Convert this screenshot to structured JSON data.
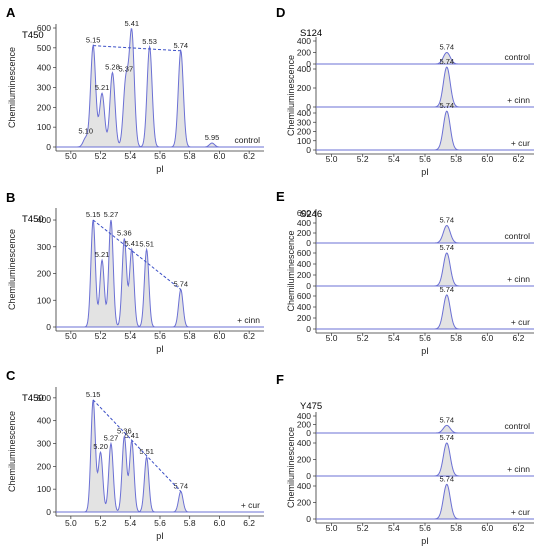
{
  "chart_data": [
    {
      "type": "line",
      "panel": "A",
      "sample": "T450",
      "xlabel": "pI",
      "ylabel": "Chemiluminescence",
      "xlim": [
        4.9,
        6.3
      ],
      "xticks": [
        "5.0",
        "5.2",
        "5.4",
        "5.6",
        "5.8",
        "6.0",
        "6.2"
      ],
      "subplots": [
        {
          "condition": "control",
          "ylim": [
            0,
            600
          ],
          "yticks": [
            "0",
            "100",
            "200",
            "300",
            "400",
            "500",
            "600"
          ],
          "peaks": [
            {
              "pI": 5.1,
              "label": "5.10",
              "height": 45
            },
            {
              "pI": 5.15,
              "label": "5.15",
              "height": 510
            },
            {
              "pI": 5.21,
              "label": "5.21",
              "height": 270
            },
            {
              "pI": 5.28,
              "label": "5.28",
              "height": 375
            },
            {
              "pI": 5.37,
              "label": "5.37",
              "height": 330
            },
            {
              "pI": 5.41,
              "label": "5.41",
              "height": 575
            },
            {
              "pI": 5.53,
              "label": "5.53",
              "height": 505
            },
            {
              "pI": 5.74,
              "label": "5.74",
              "height": 485
            },
            {
              "pI": 5.95,
              "label": "5.95",
              "height": 20
            }
          ],
          "trend_line": [
            "5.15",
            "5.74"
          ]
        }
      ]
    },
    {
      "type": "line",
      "panel": "B",
      "sample": "T450",
      "xlabel": "pI",
      "ylabel": "Chemiluminescence",
      "xlim": [
        4.9,
        6.3
      ],
      "xticks": [
        "5.0",
        "5.2",
        "5.4",
        "5.6",
        "5.8",
        "6.0",
        "6.2"
      ],
      "subplots": [
        {
          "condition": "+ cinn",
          "ylim": [
            0,
            430
          ],
          "yticks": [
            "0",
            "100",
            "200",
            "300",
            "400"
          ],
          "peaks": [
            {
              "pI": 5.15,
              "label": "5.15",
              "height": 400
            },
            {
              "pI": 5.21,
              "label": "5.21",
              "height": 250
            },
            {
              "pI": 5.27,
              "label": "5.27",
              "height": 400
            },
            {
              "pI": 5.36,
              "label": "5.36",
              "height": 330
            },
            {
              "pI": 5.41,
              "label": "5.41",
              "height": 290
            },
            {
              "pI": 5.51,
              "label": "5.51",
              "height": 290
            },
            {
              "pI": 5.74,
              "label": "5.74",
              "height": 140
            }
          ],
          "trend_line": [
            "5.15",
            "5.74"
          ]
        }
      ]
    },
    {
      "type": "line",
      "panel": "C",
      "sample": "T450",
      "xlabel": "pI",
      "ylabel": "Chemiluminescence",
      "xlim": [
        4.9,
        6.3
      ],
      "xticks": [
        "5.0",
        "5.2",
        "5.4",
        "5.6",
        "5.8",
        "6.0",
        "6.2"
      ],
      "subplots": [
        {
          "condition": "+ cur",
          "ylim": [
            0,
            530
          ],
          "yticks": [
            "0",
            "100",
            "200",
            "300",
            "400",
            "500"
          ],
          "peaks": [
            {
              "pI": 5.15,
              "label": "5.15",
              "height": 490
            },
            {
              "pI": 5.2,
              "label": "5.20",
              "height": 260
            },
            {
              "pI": 5.27,
              "label": "5.27",
              "height": 300
            },
            {
              "pI": 5.36,
              "label": "5.36",
              "height": 330
            },
            {
              "pI": 5.41,
              "label": "5.41",
              "height": 310
            },
            {
              "pI": 5.51,
              "label": "5.51",
              "height": 240
            },
            {
              "pI": 5.74,
              "label": "5.74",
              "height": 90
            }
          ],
          "trend_line": [
            "5.15",
            "5.74"
          ]
        }
      ]
    },
    {
      "type": "line",
      "panel": "D",
      "sample": "S124",
      "xlabel": "pI",
      "ylabel": "Chemiluminescence",
      "xlim": [
        4.9,
        6.3
      ],
      "xticks": [
        "5.0",
        "5.2",
        "5.4",
        "5.6",
        "5.8",
        "6.0",
        "6.2"
      ],
      "subplots": [
        {
          "condition": "control",
          "ylim": [
            0,
            400
          ],
          "yticks": [
            "0",
            "200",
            "400"
          ],
          "peaks": [
            {
              "pI": 5.74,
              "label": "5.74",
              "height": 200
            }
          ]
        },
        {
          "condition": "+ cinn",
          "ylim": [
            0,
            400
          ],
          "yticks": [
            "0",
            "200",
            "400"
          ],
          "peaks": [
            {
              "pI": 5.74,
              "label": "5.74",
              "height": 420
            }
          ]
        },
        {
          "condition": "+ cur",
          "ylim": [
            0,
            400
          ],
          "yticks": [
            "0",
            "100",
            "200",
            "300",
            "400"
          ],
          "peaks": [
            {
              "pI": 5.74,
              "label": "5.74",
              "height": 420
            }
          ]
        }
      ]
    },
    {
      "type": "line",
      "panel": "E",
      "sample": "S246",
      "xlabel": "pI",
      "ylabel": "Chemiluminescence",
      "xlim": [
        4.9,
        6.3
      ],
      "xticks": [
        "5.0",
        "5.2",
        "5.4",
        "5.6",
        "5.8",
        "6.0",
        "6.2"
      ],
      "subplots": [
        {
          "condition": "control",
          "ylim": [
            0,
            600
          ],
          "yticks": [
            "0",
            "200",
            "400",
            "600"
          ],
          "peaks": [
            {
              "pI": 5.74,
              "label": "5.74",
              "height": 350
            }
          ]
        },
        {
          "condition": "+ cinn",
          "ylim": [
            0,
            600
          ],
          "yticks": [
            "0",
            "200",
            "400",
            "600"
          ],
          "peaks": [
            {
              "pI": 5.74,
              "label": "5.74",
              "height": 600
            }
          ]
        },
        {
          "condition": "+ cur",
          "ylim": [
            0,
            600
          ],
          "yticks": [
            "0",
            "200",
            "400",
            "600"
          ],
          "peaks": [
            {
              "pI": 5.74,
              "label": "5.74",
              "height": 620
            }
          ]
        }
      ]
    },
    {
      "type": "line",
      "panel": "F",
      "sample": "Y475",
      "xlabel": "pI",
      "ylabel": "Chemiluminescence",
      "xlim": [
        4.9,
        6.3
      ],
      "xticks": [
        "5.0",
        "5.2",
        "5.4",
        "5.6",
        "5.8",
        "6.0",
        "6.2"
      ],
      "subplots": [
        {
          "condition": "control",
          "ylim": [
            0,
            400
          ],
          "yticks": [
            "0",
            "200",
            "400"
          ],
          "peaks": [
            {
              "pI": 5.74,
              "label": "5.74",
              "height": 180
            }
          ]
        },
        {
          "condition": "+ cinn",
          "ylim": [
            0,
            400
          ],
          "yticks": [
            "0",
            "200",
            "400"
          ],
          "peaks": [
            {
              "pI": 5.74,
              "label": "5.74",
              "height": 400
            }
          ]
        },
        {
          "condition": "+ cur",
          "ylim": [
            0,
            400
          ],
          "yticks": [
            "0",
            "200",
            "400"
          ],
          "peaks": [
            {
              "pI": 5.74,
              "label": "5.74",
              "height": 420
            }
          ]
        }
      ]
    }
  ],
  "colors": {
    "trace": "#6b70d4",
    "fill": "#e3e3e3",
    "trend_line": "#3b4fc6",
    "baseline": "#6a6fd0"
  }
}
